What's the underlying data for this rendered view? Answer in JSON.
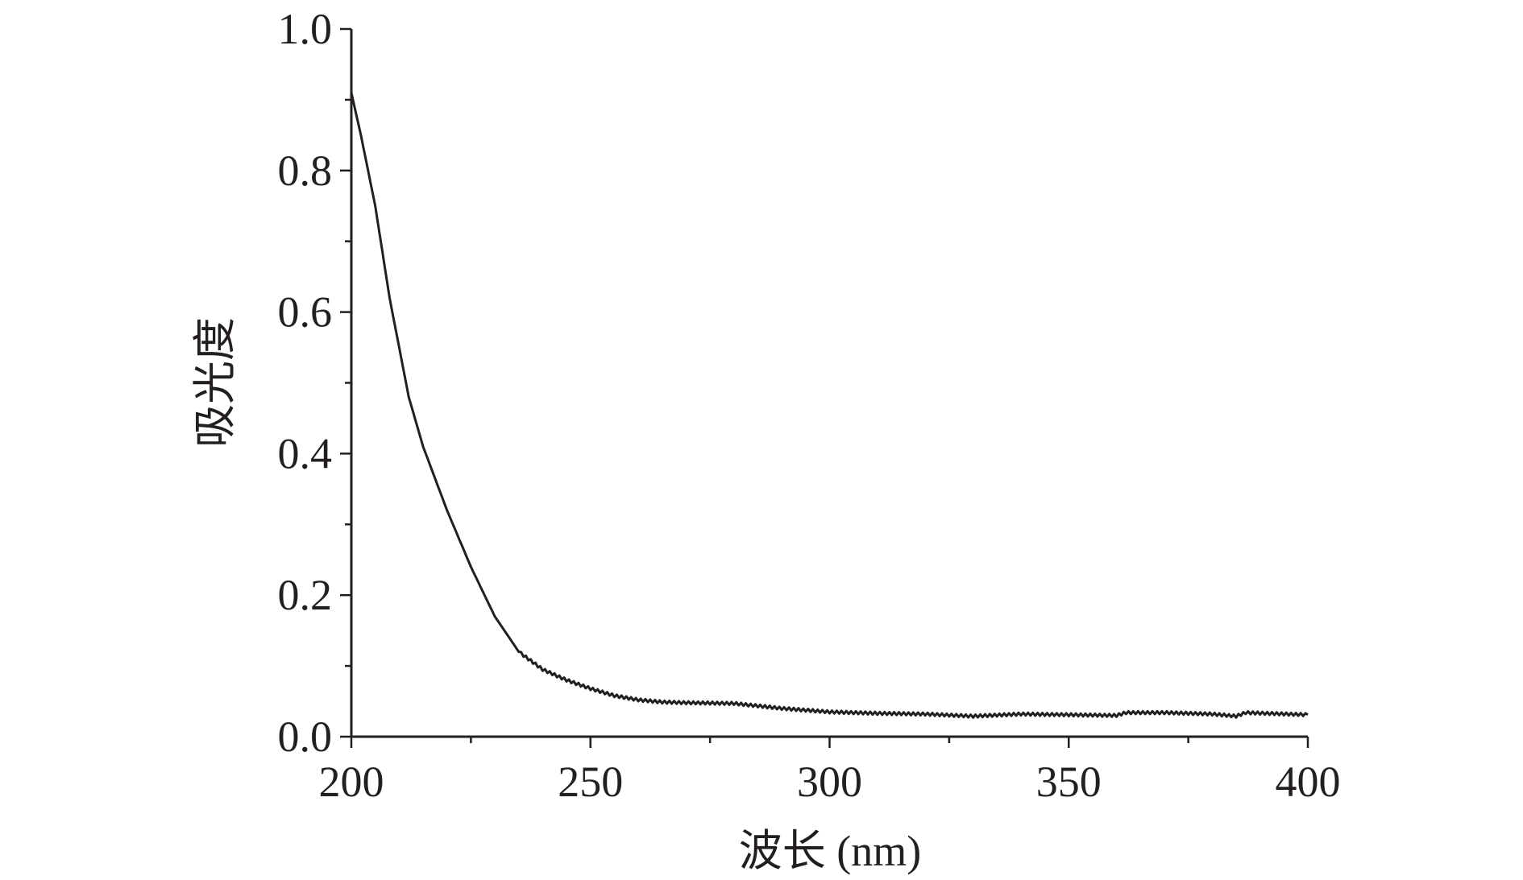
{
  "chart_data": {
    "type": "line",
    "title": "",
    "xlabel": "波长 (nm)",
    "ylabel": "吸光度",
    "xlim": [
      200,
      400
    ],
    "ylim": [
      0.0,
      1.0
    ],
    "xticks": [
      "200",
      "250",
      "300",
      "350",
      "400"
    ],
    "yticks": [
      "0.0",
      "0.2",
      "0.4",
      "0.6",
      "0.8",
      "1.0"
    ],
    "grid": false,
    "line_color": "#231f20",
    "series": [
      {
        "x": [
          200,
          202,
          205,
          208,
          210,
          212,
          215,
          220,
          225,
          230,
          235,
          240,
          245,
          250,
          255,
          260,
          265,
          270,
          280,
          290,
          300,
          310,
          320,
          330,
          340,
          350,
          360,
          362,
          370,
          380,
          385,
          387,
          400
        ],
        "y": [
          0.91,
          0.85,
          0.75,
          0.62,
          0.55,
          0.48,
          0.41,
          0.32,
          0.24,
          0.17,
          0.12,
          0.095,
          0.08,
          0.068,
          0.058,
          0.052,
          0.049,
          0.048,
          0.047,
          0.04,
          0.035,
          0.033,
          0.032,
          0.029,
          0.032,
          0.031,
          0.03,
          0.034,
          0.034,
          0.032,
          0.029,
          0.034,
          0.031
        ]
      }
    ]
  }
}
